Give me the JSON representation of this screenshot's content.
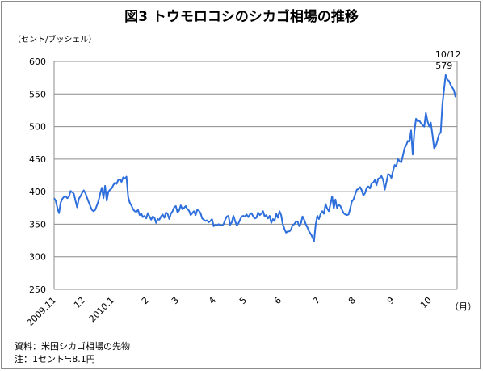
{
  "chart_data": {
    "type": "line",
    "title": "図3 トウモロコシのシカゴ相場の推移",
    "ylabel": "（セント/ブッシェル）",
    "x_unit_label": "（月）",
    "ylim": [
      250,
      600
    ],
    "y_ticks": [
      "600",
      "550",
      "500",
      "450",
      "400",
      "350",
      "300",
      "250"
    ],
    "x_tick_labels": [
      "2009.11",
      "12",
      "2010.1",
      "2",
      "3",
      "4",
      "5",
      "6",
      "7",
      "8",
      "9",
      "10"
    ],
    "grid": true,
    "line_color": "#2e6fdc",
    "annotation": {
      "date": "10/12",
      "value": "579"
    },
    "series": [
      {
        "values": [
          390,
          386,
          375,
          367,
          383,
          389,
          392,
          393,
          390,
          392,
          401,
          399,
          397,
          386,
          376,
          389,
          393,
          398,
          402,
          398,
          391,
          384,
          378,
          372,
          370,
          372,
          379,
          386,
          397,
          406,
          390,
          409,
          386,
          400,
          403,
          405,
          410,
          414,
          412,
          418,
          419,
          415,
          422,
          420,
          423,
          392,
          383,
          379,
          373,
          370,
          369,
          372,
          364,
          366,
          361,
          363,
          359,
          367,
          362,
          357,
          362,
          360,
          352,
          358,
          357,
          362,
          365,
          360,
          368,
          366,
          358,
          366,
          370,
          376,
          378,
          368,
          371,
          379,
          373,
          375,
          378,
          373,
          371,
          364,
          367,
          370,
          364,
          372,
          371,
          367,
          359,
          357,
          355,
          356,
          353,
          355,
          358,
          347,
          349,
          348,
          350,
          349,
          348,
          350,
          357,
          362,
          363,
          349,
          353,
          363,
          355,
          348,
          351,
          357,
          362,
          363,
          362,
          365,
          361,
          365,
          367,
          362,
          359,
          360,
          368,
          364,
          366,
          370,
          362,
          364,
          359,
          363,
          352,
          358,
          355,
          366,
          360,
          370,
          364,
          350,
          343,
          337,
          339,
          339,
          342,
          349,
          350,
          354,
          354,
          347,
          351,
          362,
          357,
          350,
          345,
          339,
          335,
          330,
          324,
          350,
          363,
          358,
          366,
          370,
          366,
          381,
          374,
          370,
          381,
          393,
          374,
          388,
          375,
          380,
          378,
          372,
          367,
          365,
          364,
          365,
          374,
          385,
          388,
          396,
          403,
          404,
          407,
          402,
          394,
          398,
          406,
          408,
          405,
          413,
          414,
          418,
          410,
          420,
          421,
          424,
          418,
          403,
          415,
          427,
          426,
          421,
          432,
          441,
          439,
          450,
          447,
          445,
          455,
          467,
          471,
          478,
          477,
          494,
          457,
          493,
          512,
          508,
          509,
          505,
          502,
          500,
          521,
          508,
          500,
          506,
          487,
          467,
          470,
          479,
          488,
          491,
          533,
          556,
          579,
          572,
          570,
          564,
          560,
          556,
          545
        ]
      }
    ]
  },
  "footnotes": {
    "source": "資料：米国シカゴ相場の先物",
    "note": "注：1セント≒8.1円"
  }
}
